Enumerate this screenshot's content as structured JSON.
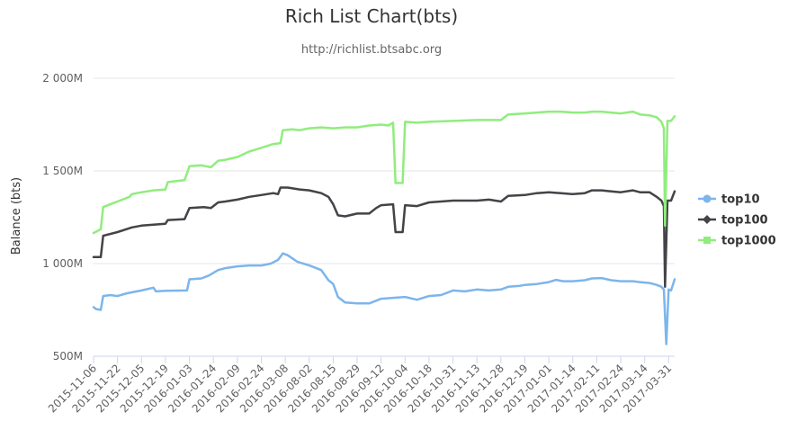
{
  "chart_data": {
    "type": "line",
    "title": "Rich List Chart(bts)",
    "subtitle": "http://richlist.btsabc.org",
    "ylabel": "Balance (bts)",
    "xlabel": "",
    "ylim": [
      500,
      2000
    ],
    "yticks": [
      {
        "value": 500,
        "label": "500M"
      },
      {
        "value": 1000,
        "label": "1 000M"
      },
      {
        "value": 1500,
        "label": "1 500M"
      },
      {
        "value": 2000,
        "label": "2 000M"
      }
    ],
    "grid": true,
    "legend": "right",
    "categories": [
      "2015-11-06",
      "2015-11-22",
      "2015-12-05",
      "2015-12-19",
      "2016-01-03",
      "2016-01-24",
      "2016-02-09",
      "2016-02-24",
      "2016-03-08",
      "2016-08-02",
      "2016-08-15",
      "2016-08-29",
      "2016-09-12",
      "2016-10-04",
      "2016-10-18",
      "2016-10-31",
      "2016-11-13",
      "2016-11-28",
      "2016-12-19",
      "2017-01-01",
      "2017-01-14",
      "2017-02-11",
      "2017-02-24",
      "2017-03-14",
      "2017-03-31"
    ],
    "series": [
      {
        "name": "top10",
        "color": "#7cb5ec",
        "marker": "circle",
        "points": [
          [
            0,
            765
          ],
          [
            0.1,
            755
          ],
          [
            0.3,
            750
          ],
          [
            0.4,
            825
          ],
          [
            0.7,
            830
          ],
          [
            1,
            825
          ],
          [
            1.4,
            840
          ],
          [
            2,
            855
          ],
          [
            2.5,
            870
          ],
          [
            2.6,
            850
          ],
          [
            3,
            853
          ],
          [
            3.9,
            855
          ],
          [
            4,
            915
          ],
          [
            4.5,
            920
          ],
          [
            4.8,
            935
          ],
          [
            5.2,
            965
          ],
          [
            5.5,
            975
          ],
          [
            6,
            985
          ],
          [
            6.5,
            990
          ],
          [
            7,
            990
          ],
          [
            7.4,
            1000
          ],
          [
            7.7,
            1020
          ],
          [
            7.9,
            1055
          ],
          [
            8.1,
            1045
          ],
          [
            8.5,
            1010
          ],
          [
            9,
            990
          ],
          [
            9.5,
            965
          ],
          [
            9.8,
            910
          ],
          [
            10,
            890
          ],
          [
            10.2,
            820
          ],
          [
            10.5,
            790
          ],
          [
            11,
            785
          ],
          [
            11.5,
            785
          ],
          [
            11.8,
            800
          ],
          [
            12,
            810
          ],
          [
            12.5,
            815
          ],
          [
            13,
            820
          ],
          [
            13.5,
            805
          ],
          [
            14,
            825
          ],
          [
            14.5,
            830
          ],
          [
            15,
            855
          ],
          [
            15.5,
            850
          ],
          [
            16,
            860
          ],
          [
            16.5,
            855
          ],
          [
            17,
            860
          ],
          [
            17.3,
            875
          ],
          [
            17.8,
            880
          ],
          [
            18,
            885
          ],
          [
            18.5,
            890
          ],
          [
            19,
            900
          ],
          [
            19.3,
            912
          ],
          [
            19.6,
            905
          ],
          [
            20,
            905
          ],
          [
            20.5,
            910
          ],
          [
            20.8,
            920
          ],
          [
            21.2,
            922
          ],
          [
            21.6,
            910
          ],
          [
            22,
            905
          ],
          [
            22.5,
            905
          ],
          [
            22.8,
            900
          ],
          [
            23.2,
            895
          ],
          [
            23.5,
            885
          ],
          [
            23.7,
            875
          ],
          [
            23.8,
            860
          ],
          [
            23.9,
            565
          ],
          [
            24,
            860
          ],
          [
            24.1,
            855
          ],
          [
            24.25,
            915
          ]
        ]
      },
      {
        "name": "top100",
        "color": "#434348",
        "marker": "diamond",
        "points": [
          [
            0,
            1035
          ],
          [
            0.3,
            1035
          ],
          [
            0.4,
            1150
          ],
          [
            1,
            1170
          ],
          [
            1.6,
            1195
          ],
          [
            2,
            1205
          ],
          [
            2.5,
            1210
          ],
          [
            3,
            1215
          ],
          [
            3.1,
            1235
          ],
          [
            3.8,
            1240
          ],
          [
            4,
            1300
          ],
          [
            4.6,
            1305
          ],
          [
            4.9,
            1300
          ],
          [
            5.2,
            1330
          ],
          [
            5.5,
            1335
          ],
          [
            6,
            1345
          ],
          [
            6.5,
            1360
          ],
          [
            7,
            1370
          ],
          [
            7.5,
            1380
          ],
          [
            7.7,
            1375
          ],
          [
            7.8,
            1410
          ],
          [
            8.1,
            1410
          ],
          [
            8.6,
            1400
          ],
          [
            9,
            1395
          ],
          [
            9.5,
            1380
          ],
          [
            9.8,
            1360
          ],
          [
            10,
            1320
          ],
          [
            10.2,
            1260
          ],
          [
            10.5,
            1255
          ],
          [
            11,
            1270
          ],
          [
            11.5,
            1270
          ],
          [
            11.8,
            1300
          ],
          [
            12,
            1315
          ],
          [
            12.5,
            1320
          ],
          [
            12.6,
            1170
          ],
          [
            12.9,
            1170
          ],
          [
            13,
            1315
          ],
          [
            13.5,
            1310
          ],
          [
            14,
            1330
          ],
          [
            14.5,
            1335
          ],
          [
            15,
            1340
          ],
          [
            15.5,
            1340
          ],
          [
            16,
            1340
          ],
          [
            16.5,
            1345
          ],
          [
            17,
            1335
          ],
          [
            17.3,
            1365
          ],
          [
            18,
            1370
          ],
          [
            18.5,
            1380
          ],
          [
            19,
            1385
          ],
          [
            19.5,
            1380
          ],
          [
            20,
            1375
          ],
          [
            20.5,
            1380
          ],
          [
            20.8,
            1395
          ],
          [
            21.2,
            1395
          ],
          [
            21.6,
            1390
          ],
          [
            22,
            1385
          ],
          [
            22.5,
            1395
          ],
          [
            22.8,
            1385
          ],
          [
            23.2,
            1385
          ],
          [
            23.5,
            1360
          ],
          [
            23.7,
            1340
          ],
          [
            23.8,
            1310
          ],
          [
            23.85,
            875
          ],
          [
            23.95,
            1340
          ],
          [
            24.1,
            1340
          ],
          [
            24.25,
            1390
          ]
        ]
      },
      {
        "name": "top1000",
        "color": "#90ed7d",
        "marker": "square",
        "points": [
          [
            0,
            1165
          ],
          [
            0.3,
            1185
          ],
          [
            0.4,
            1305
          ],
          [
            1,
            1335
          ],
          [
            1.5,
            1360
          ],
          [
            1.6,
            1375
          ],
          [
            2,
            1385
          ],
          [
            2.5,
            1395
          ],
          [
            3,
            1400
          ],
          [
            3.1,
            1440
          ],
          [
            3.8,
            1450
          ],
          [
            4,
            1525
          ],
          [
            4.5,
            1530
          ],
          [
            4.9,
            1520
          ],
          [
            5.2,
            1555
          ],
          [
            5.5,
            1560
          ],
          [
            6,
            1575
          ],
          [
            6.5,
            1605
          ],
          [
            7,
            1625
          ],
          [
            7.5,
            1645
          ],
          [
            7.8,
            1650
          ],
          [
            7.9,
            1720
          ],
          [
            8.3,
            1725
          ],
          [
            8.6,
            1720
          ],
          [
            9,
            1730
          ],
          [
            9.5,
            1735
          ],
          [
            10,
            1730
          ],
          [
            10.5,
            1735
          ],
          [
            11,
            1735
          ],
          [
            11.5,
            1745
          ],
          [
            12,
            1750
          ],
          [
            12.3,
            1745
          ],
          [
            12.5,
            1760
          ],
          [
            12.6,
            1435
          ],
          [
            12.9,
            1435
          ],
          [
            13,
            1765
          ],
          [
            13.5,
            1760
          ],
          [
            14,
            1765
          ],
          [
            15,
            1770
          ],
          [
            16,
            1775
          ],
          [
            17,
            1775
          ],
          [
            17.3,
            1805
          ],
          [
            18,
            1810
          ],
          [
            18.5,
            1815
          ],
          [
            19,
            1820
          ],
          [
            19.5,
            1820
          ],
          [
            20,
            1815
          ],
          [
            20.5,
            1815
          ],
          [
            20.8,
            1820
          ],
          [
            21.2,
            1820
          ],
          [
            21.6,
            1815
          ],
          [
            22,
            1810
          ],
          [
            22.5,
            1820
          ],
          [
            22.8,
            1805
          ],
          [
            23.2,
            1800
          ],
          [
            23.5,
            1790
          ],
          [
            23.7,
            1765
          ],
          [
            23.8,
            1730
          ],
          [
            23.85,
            1205
          ],
          [
            23.95,
            1770
          ],
          [
            24.1,
            1770
          ],
          [
            24.25,
            1795
          ]
        ]
      }
    ]
  }
}
